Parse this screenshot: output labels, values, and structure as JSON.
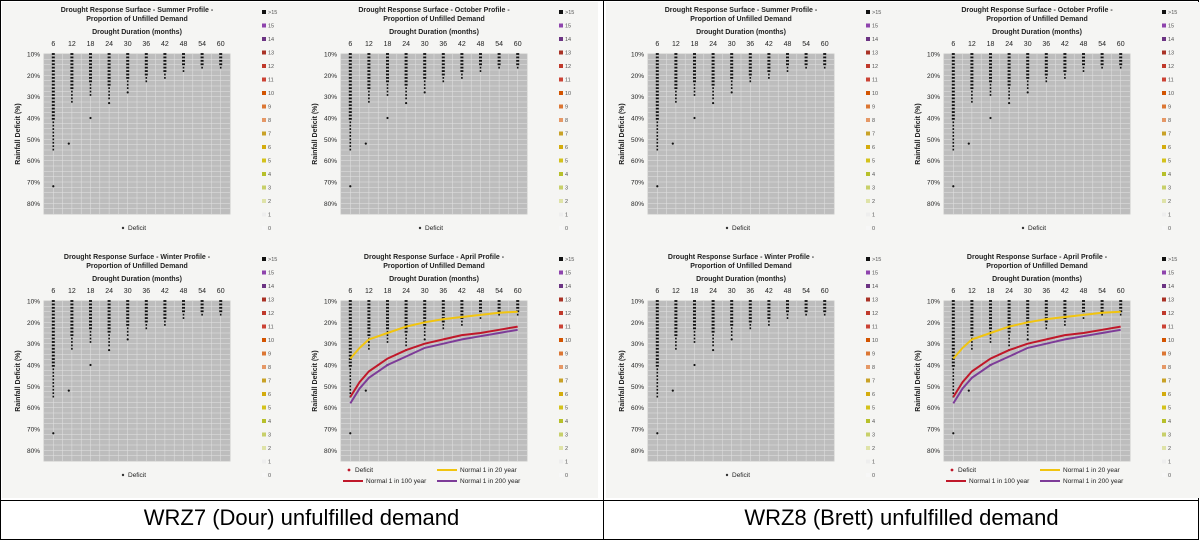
{
  "legend_scale": [
    ">15",
    "15",
    "14",
    "13",
    "12",
    "11",
    "10",
    "9",
    "8",
    "7",
    "6",
    "5",
    "4",
    "3",
    "2",
    "1",
    "0"
  ],
  "legend_colors": [
    "#111111",
    "#8e44ad",
    "#6c3483",
    "#a93226",
    "#c0392b",
    "#cb4335",
    "#d35400",
    "#dc7633",
    "#e59866",
    "#c9a227",
    "#d4ac0d",
    "#d4c21c",
    "#b7c02a",
    "#c8d06a",
    "#dfe3a8",
    "#eeeeee",
    "#f7f7f7"
  ],
  "figures": [
    {
      "caption": "WRZ7 (Dour) unfulfilled demand",
      "panels": [
        {
          "title": [
            "Drought Response Surface - Summer Profile -",
            "Proportion of Unfilled Demand"
          ],
          "kind": "basic"
        },
        {
          "title": [
            "Drought Response Surface - October Profile -",
            "Proportion of Unfilled Demand"
          ],
          "kind": "basic"
        },
        {
          "title": [
            "Drought Response Surface - Winter Profile -",
            "Proportion of Unfilled Demand"
          ],
          "kind": "basic"
        },
        {
          "title": [
            "Drought Response Surface - April Profile -",
            "Proportion of Unfilled Demand"
          ],
          "kind": "april"
        }
      ]
    },
    {
      "caption": "WRZ8 (Brett) unfulfilled demand",
      "panels": [
        {
          "title": [
            "Drought Response Surface - Summer Profile -",
            "Proportion of Unfilled Demand"
          ],
          "kind": "basic"
        },
        {
          "title": [
            "Drought Response Surface - October Profile -",
            "Proportion of Unfilled Demand"
          ],
          "kind": "basic"
        },
        {
          "title": [
            "Drought Response Surface - Winter Profile -",
            "Proportion of Unfilled Demand"
          ],
          "kind": "basic"
        },
        {
          "title": [
            "Drought Response Surface - April Profile -",
            "Proportion of Unfilled Demand"
          ],
          "kind": "april"
        }
      ]
    }
  ],
  "chart_data": {
    "type": "scatter",
    "xlabel": "Drought Duration (months)",
    "ylabel": "Rainfall Deficit (%)",
    "x_ticks": [
      6,
      12,
      18,
      24,
      30,
      36,
      42,
      48,
      54,
      60
    ],
    "y_ticks": [
      "10%",
      "20%",
      "30%",
      "40%",
      "50%",
      "60%",
      "70%",
      "80%"
    ],
    "xlim": [
      3,
      63
    ],
    "ylim": [
      10,
      85
    ],
    "x_reversed": false,
    "y_inverted": true,
    "grid": true,
    "legend_basic": [
      "Deficit"
    ],
    "legend_april": [
      "Deficit",
      "Normal 1 in 20 year",
      "Normal 1 in 100 year",
      "Normal 1 in 200 year"
    ],
    "deficit_extent": [
      {
        "x": 6,
        "y_top": 10,
        "y_bottom": 55
      },
      {
        "x": 12,
        "y_top": 10,
        "y_bottom": 34
      },
      {
        "x": 18,
        "y_top": 10,
        "y_bottom": 30
      },
      {
        "x": 24,
        "y_top": 10,
        "y_bottom": 31
      },
      {
        "x": 30,
        "y_top": 10,
        "y_bottom": 27
      },
      {
        "x": 36,
        "y_top": 10,
        "y_bottom": 24
      },
      {
        "x": 42,
        "y_top": 10,
        "y_bottom": 22
      },
      {
        "x": 48,
        "y_top": 10,
        "y_bottom": 19
      },
      {
        "x": 54,
        "y_top": 10,
        "y_bottom": 17
      },
      {
        "x": 60,
        "y_top": 10,
        "y_bottom": 17
      }
    ],
    "deficit_outliers": [
      {
        "x": 6,
        "y": 72
      },
      {
        "x": 11,
        "y": 52
      },
      {
        "x": 18,
        "y": 40
      },
      {
        "x": 24,
        "y": 33
      },
      {
        "x": 30,
        "y": 28
      }
    ],
    "series": [
      {
        "name": "Normal 1 in 20 year",
        "color": "#f1c40f",
        "x": [
          6,
          9,
          12,
          18,
          24,
          30,
          36,
          42,
          48,
          54,
          60
        ],
        "y": [
          37,
          32,
          28,
          25,
          22,
          20,
          18.5,
          17.5,
          16.5,
          15.5,
          15
        ]
      },
      {
        "name": "Normal 1 in 100 year",
        "color": "#c0182a",
        "x": [
          6,
          9,
          12,
          18,
          24,
          30,
          36,
          42,
          48,
          54,
          60
        ],
        "y": [
          55,
          48,
          43,
          37,
          33,
          30,
          28,
          26,
          25,
          23.5,
          22
        ]
      },
      {
        "name": "Normal 1 in 200 year",
        "color": "#7d3c98",
        "x": [
          6,
          9,
          12,
          18,
          24,
          30,
          36,
          42,
          48,
          54,
          60
        ],
        "y": [
          58,
          51,
          46,
          40,
          36,
          32,
          30,
          28,
          26.5,
          25,
          23.5
        ]
      }
    ]
  }
}
